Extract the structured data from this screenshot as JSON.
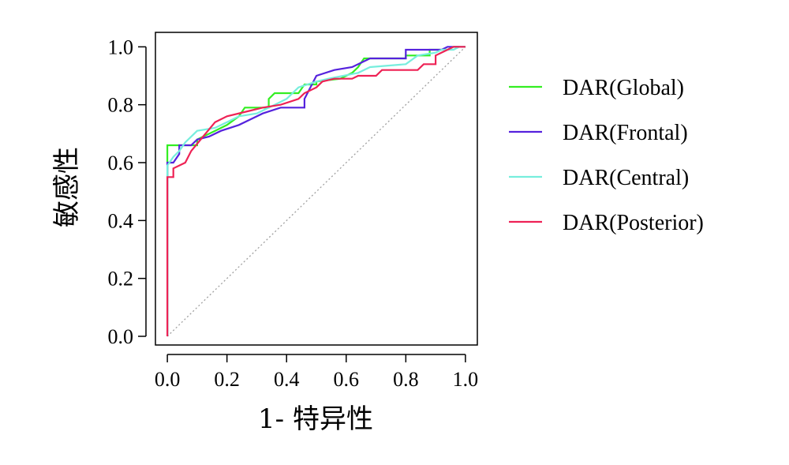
{
  "chart_data": {
    "type": "line",
    "title": "",
    "xlabel": "1- 特异性",
    "ylabel": "敏感性",
    "xlim": [
      -0.04,
      1.04
    ],
    "ylim": [
      -0.03,
      1.05
    ],
    "xticks": [
      0.0,
      0.2,
      0.4,
      0.6,
      0.8,
      1.0
    ],
    "yticks": [
      0.0,
      0.2,
      0.4,
      0.6,
      0.8,
      1.0
    ],
    "xtick_labels": [
      "0.0",
      "0.2",
      "0.4",
      "0.6",
      "0.8",
      "1.0"
    ],
    "ytick_labels": [
      "0.0",
      "0.2",
      "0.4",
      "0.6",
      "0.8",
      "1.0"
    ],
    "grid": false,
    "legend_position": "right",
    "reference_line": {
      "style": "dotted",
      "color": "#a0a0a0",
      "points": [
        [
          0,
          0
        ],
        [
          1,
          1
        ]
      ]
    },
    "series": [
      {
        "name": "DAR(Global)",
        "color": "#33ee22",
        "points": [
          [
            0,
            0
          ],
          [
            0,
            0.55
          ],
          [
            0,
            0.66
          ],
          [
            0.02,
            0.66
          ],
          [
            0.04,
            0.66
          ],
          [
            0.04,
            0.66
          ],
          [
            0.1,
            0.66
          ],
          [
            0.1,
            0.68
          ],
          [
            0.16,
            0.71
          ],
          [
            0.2,
            0.73
          ],
          [
            0.24,
            0.76
          ],
          [
            0.26,
            0.79
          ],
          [
            0.34,
            0.79
          ],
          [
            0.34,
            0.82
          ],
          [
            0.36,
            0.84
          ],
          [
            0.44,
            0.84
          ],
          [
            0.46,
            0.87
          ],
          [
            0.5,
            0.87
          ],
          [
            0.5,
            0.88
          ],
          [
            0.58,
            0.89
          ],
          [
            0.62,
            0.91
          ],
          [
            0.64,
            0.93
          ],
          [
            0.66,
            0.96
          ],
          [
            0.8,
            0.96
          ],
          [
            0.8,
            0.97
          ],
          [
            0.88,
            0.97
          ],
          [
            0.88,
            0.99
          ],
          [
            0.94,
            0.99
          ],
          [
            0.96,
            1
          ],
          [
            1,
            1
          ]
        ]
      },
      {
        "name": "DAR(Frontal)",
        "color": "#5522dd",
        "points": [
          [
            0,
            0
          ],
          [
            0,
            0.6
          ],
          [
            0.02,
            0.6
          ],
          [
            0.04,
            0.63
          ],
          [
            0.04,
            0.66
          ],
          [
            0.08,
            0.66
          ],
          [
            0.1,
            0.68
          ],
          [
            0.14,
            0.69
          ],
          [
            0.18,
            0.71
          ],
          [
            0.24,
            0.73
          ],
          [
            0.28,
            0.75
          ],
          [
            0.32,
            0.77
          ],
          [
            0.38,
            0.79
          ],
          [
            0.46,
            0.79
          ],
          [
            0.46,
            0.82
          ],
          [
            0.48,
            0.86
          ],
          [
            0.5,
            0.9
          ],
          [
            0.56,
            0.92
          ],
          [
            0.62,
            0.93
          ],
          [
            0.68,
            0.96
          ],
          [
            0.8,
            0.96
          ],
          [
            0.8,
            0.99
          ],
          [
            0.92,
            0.99
          ],
          [
            0.94,
            1
          ],
          [
            1,
            1
          ]
        ]
      },
      {
        "name": "DAR(Central)",
        "color": "#77eedd",
        "points": [
          [
            0,
            0
          ],
          [
            0,
            0.55
          ],
          [
            0,
            0.59
          ],
          [
            0.02,
            0.62
          ],
          [
            0.04,
            0.64
          ],
          [
            0.06,
            0.67
          ],
          [
            0.1,
            0.71
          ],
          [
            0.16,
            0.72
          ],
          [
            0.2,
            0.74
          ],
          [
            0.24,
            0.76
          ],
          [
            0.3,
            0.77
          ],
          [
            0.36,
            0.8
          ],
          [
            0.4,
            0.82
          ],
          [
            0.44,
            0.86
          ],
          [
            0.5,
            0.88
          ],
          [
            0.54,
            0.89
          ],
          [
            0.64,
            0.91
          ],
          [
            0.68,
            0.93
          ],
          [
            0.8,
            0.94
          ],
          [
            0.84,
            0.97
          ],
          [
            0.9,
            0.98
          ],
          [
            0.92,
            0.99
          ],
          [
            0.96,
            0.99
          ],
          [
            0.98,
            1
          ],
          [
            1,
            1
          ]
        ]
      },
      {
        "name": "DAR(Posterior)",
        "color": "#ee2255",
        "points": [
          [
            0,
            0
          ],
          [
            0,
            0.55
          ],
          [
            0.02,
            0.55
          ],
          [
            0.02,
            0.58
          ],
          [
            0.06,
            0.6
          ],
          [
            0.08,
            0.64
          ],
          [
            0.12,
            0.69
          ],
          [
            0.16,
            0.74
          ],
          [
            0.2,
            0.76
          ],
          [
            0.28,
            0.78
          ],
          [
            0.32,
            0.79
          ],
          [
            0.38,
            0.8
          ],
          [
            0.44,
            0.82
          ],
          [
            0.46,
            0.84
          ],
          [
            0.5,
            0.86
          ],
          [
            0.52,
            0.88
          ],
          [
            0.56,
            0.89
          ],
          [
            0.62,
            0.89
          ],
          [
            0.64,
            0.9
          ],
          [
            0.7,
            0.9
          ],
          [
            0.72,
            0.92
          ],
          [
            0.84,
            0.92
          ],
          [
            0.86,
            0.94
          ],
          [
            0.9,
            0.94
          ],
          [
            0.9,
            0.97
          ],
          [
            0.94,
            0.99
          ],
          [
            0.96,
            1
          ],
          [
            1,
            1
          ]
        ]
      }
    ]
  }
}
